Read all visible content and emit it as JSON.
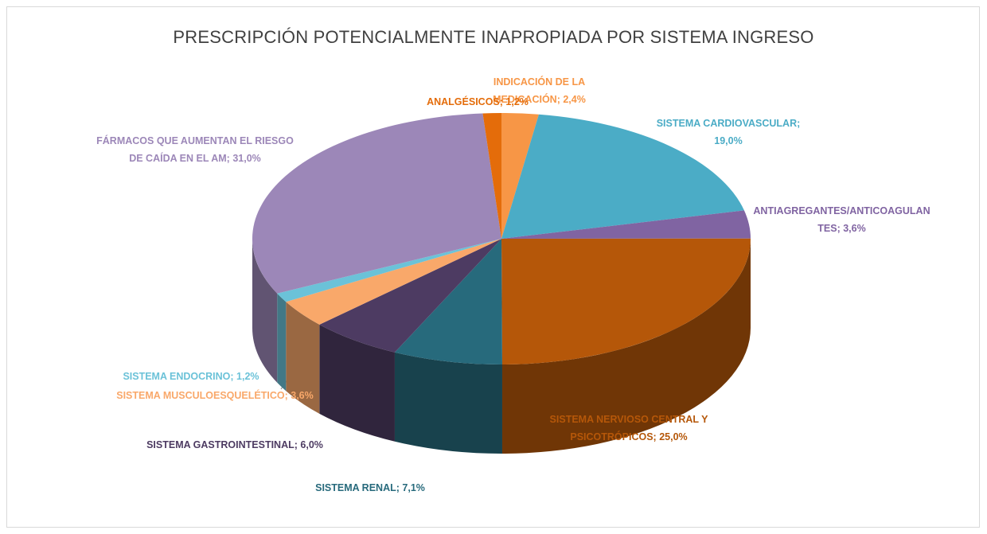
{
  "chart_data": {
    "type": "pie",
    "title": "PRESCRIPCIÓN POTENCIALMENTE INAPROPIADA POR SISTEMA INGRESO",
    "categories": [
      "INDICACIÓN DE LA MEDICACIÓN;",
      "SISTEMA CARDIOVASCULAR;",
      "ANTIAGREGANTES/ANTICOAGULANTES;",
      "SISTEMA NERVIOSO CENTRAL Y PSICOTRÓPICOS;",
      "SISTEMA RENAL;",
      "SISTEMA GASTROINTESTINAL;",
      "SISTEMA MUSCULOESQUELÉTICO;",
      "SISTEMA ENDOCRINO;",
      "FÁRMACOS QUE AUMENTAN EL RIESGO DE CAÍDA EN EL AM;",
      "ANALGÉSICOS;"
    ],
    "values": [
      2.4,
      19.0,
      3.6,
      25.0,
      7.1,
      6.0,
      3.6,
      1.2,
      31.0,
      1.2
    ],
    "value_labels": [
      "2,4%",
      "19,0%",
      "3,6%",
      "25,0%",
      "7,1%",
      "6,0%",
      "3,6%",
      "1,2%",
      "31,0%",
      "1,2%"
    ],
    "colors": [
      "#F79646",
      "#4BACC6",
      "#8064A2",
      "#B55709",
      "#276A7C",
      "#4D3B62",
      "#F9A86A",
      "#6BC2D8",
      "#9C87B8",
      "#E46C0A"
    ]
  }
}
